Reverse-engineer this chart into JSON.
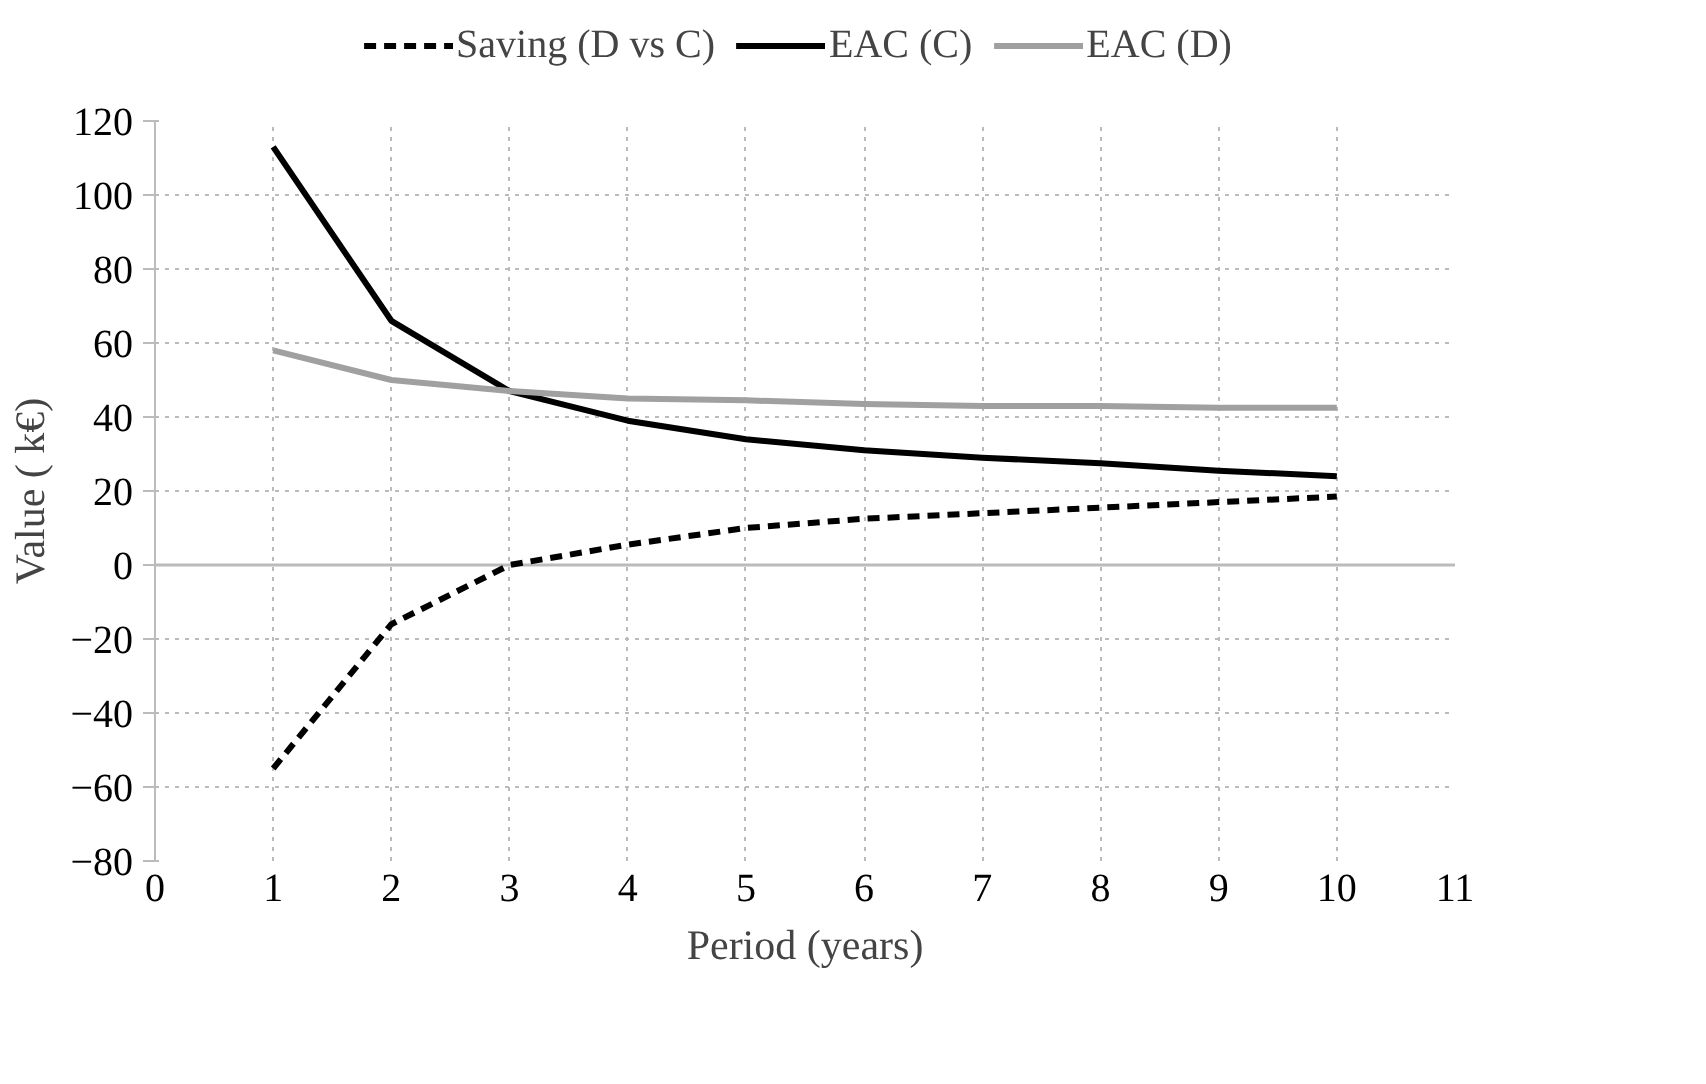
{
  "chart_data": {
    "type": "line",
    "xlabel": "Period (years)",
    "ylabel": "Value ( k€)",
    "x": [
      1,
      2,
      3,
      4,
      5,
      6,
      7,
      8,
      9,
      10
    ],
    "series": [
      {
        "name": "Saving (D vs C)",
        "color": "#000000",
        "line_style": "dashed",
        "values": [
          -55,
          -16,
          0,
          5.5,
          10,
          12.5,
          14,
          15.5,
          17,
          18.5
        ]
      },
      {
        "name": "EAC (C)",
        "color": "#000000",
        "line_style": "solid",
        "values": [
          113,
          66,
          47,
          39,
          34,
          31,
          29,
          27.5,
          25.5,
          24
        ]
      },
      {
        "name": "EAC (D)",
        "color": "#a0a0a0",
        "line_style": "solid",
        "values": [
          58,
          50,
          47,
          45,
          44.5,
          43.5,
          43,
          43,
          42.5,
          42.5
        ]
      }
    ],
    "xlim": [
      0,
      11
    ],
    "xticks": [
      0,
      1,
      2,
      3,
      4,
      5,
      6,
      7,
      8,
      9,
      10,
      11
    ],
    "ylim": [
      -80,
      120
    ],
    "yticks": [
      -80,
      -60,
      -40,
      -20,
      0,
      20,
      40,
      60,
      80,
      100,
      120
    ],
    "grid": true,
    "legend": "top",
    "marker": "none"
  }
}
